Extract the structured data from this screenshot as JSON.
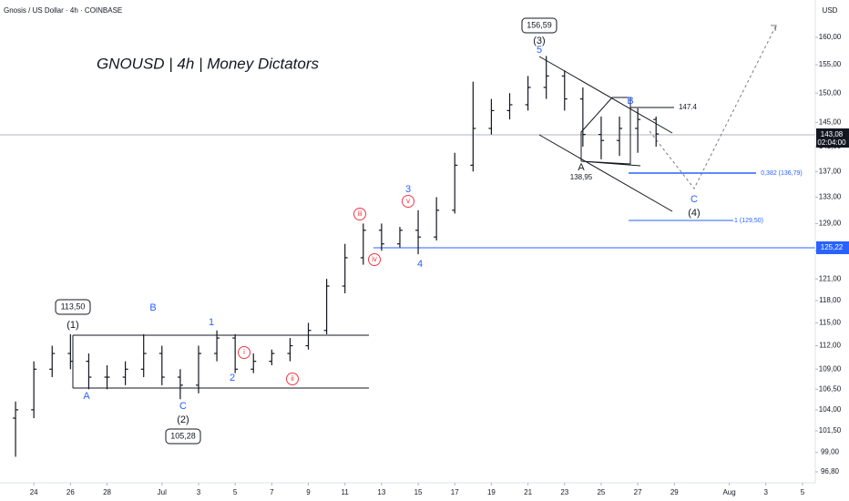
{
  "chart_data": {
    "type": "ohlc",
    "header": "Gnosis / US Dollar · 4h · COINBASE",
    "title": "GNOUSD | 4h | Money Dictators",
    "currency": "USD",
    "color": "#131722",
    "log_scale": true,
    "x": [
      -1,
      0,
      1,
      2,
      3,
      4,
      5,
      6,
      7,
      8,
      9,
      10,
      11,
      12,
      13,
      14,
      15,
      16,
      17,
      18,
      19,
      20,
      21,
      22,
      23,
      24,
      25,
      26,
      27,
      28,
      29,
      30,
      31,
      32,
      33,
      34
    ],
    "open": [
      103,
      104,
      109,
      111,
      110,
      108,
      108,
      109,
      111,
      108,
      107,
      111,
      113,
      109,
      110,
      111,
      112,
      114,
      120,
      124,
      128,
      126,
      128,
      127,
      131,
      138,
      144,
      147,
      148,
      151,
      153,
      149,
      143,
      142,
      144,
      145.5
    ],
    "high": [
      105,
      110,
      112,
      113.5,
      111,
      109.5,
      110,
      113.5,
      112,
      109,
      112,
      114,
      113.5,
      111,
      111.5,
      113,
      115,
      121,
      126,
      129,
      129,
      128.5,
      131,
      133,
      140,
      152,
      149,
      150,
      153,
      156.59,
      154,
      151,
      146,
      146,
      147.4,
      146
    ],
    "low": [
      98.5,
      103,
      108,
      109,
      106.5,
      106.5,
      107,
      108,
      107,
      105.28,
      106,
      110,
      108.5,
      108.5,
      109.5,
      110,
      111.5,
      113.5,
      119,
      123,
      125,
      125.5,
      124.5,
      126.5,
      130.5,
      137,
      143,
      145.5,
      147,
      149,
      147,
      141,
      138.95,
      139.5,
      140,
      141
    ],
    "close": [
      104,
      109,
      111,
      110,
      108,
      108,
      109,
      111,
      108,
      107,
      111,
      113,
      109,
      110,
      111,
      112,
      114,
      120,
      124,
      128,
      126,
      128,
      127,
      131,
      138,
      144,
      147,
      148,
      151,
      153,
      149,
      143,
      142,
      144,
      145.5,
      143.08
    ],
    "xlim": [
      -1.85,
      42.7
    ],
    "xticks": [
      {
        "value": 0,
        "label": "24"
      },
      {
        "value": 2,
        "label": "26"
      },
      {
        "value": 4,
        "label": "28"
      },
      {
        "value": 7,
        "label": "Jul"
      },
      {
        "value": 9,
        "label": "3"
      },
      {
        "value": 11,
        "label": "5"
      },
      {
        "value": 13,
        "label": "7"
      },
      {
        "value": 15,
        "label": "9"
      },
      {
        "value": 17,
        "label": "11"
      },
      {
        "value": 19,
        "label": "13"
      },
      {
        "value": 21,
        "label": "15"
      },
      {
        "value": 23,
        "label": "17"
      },
      {
        "value": 25,
        "label": "19"
      },
      {
        "value": 27,
        "label": "21"
      },
      {
        "value": 29,
        "label": "23"
      },
      {
        "value": 31,
        "label": "25"
      },
      {
        "value": 33,
        "label": "27"
      },
      {
        "value": 35,
        "label": "29"
      },
      {
        "value": 38,
        "label": "Aug"
      },
      {
        "value": 40,
        "label": "3"
      },
      {
        "value": 42,
        "label": "5"
      }
    ],
    "ylim": [
      95.58,
      167.06
    ],
    "yticks": [
      {
        "value": 96.8,
        "label": "96,80"
      },
      {
        "value": 99,
        "label": "99,00"
      },
      {
        "value": 101.5,
        "label": "101,50"
      },
      {
        "value": 104,
        "label": "104,00"
      },
      {
        "value": 106.5,
        "label": "106,50"
      },
      {
        "value": 109,
        "label": "109,00"
      },
      {
        "value": 112,
        "label": "112,00"
      },
      {
        "value": 115,
        "label": "115,00"
      },
      {
        "value": 118,
        "label": "118,00"
      },
      {
        "value": 121,
        "label": "121,00"
      },
      {
        "value": 125,
        "label": "125,00"
      },
      {
        "value": 129,
        "label": "129,00"
      },
      {
        "value": 133,
        "label": "133,00"
      },
      {
        "value": 137,
        "label": "137,00"
      },
      {
        "value": 141,
        "label": "141,00"
      },
      {
        "value": 145,
        "label": "145,00"
      },
      {
        "value": 150,
        "label": "150,00"
      },
      {
        "value": 155,
        "label": "155,00"
      },
      {
        "value": 160,
        "label": "160,00"
      }
    ],
    "annotations": [
      "(1)",
      "113,50",
      "(2)",
      "105,28",
      "(3)",
      "156,59",
      "(4)",
      "A",
      "B",
      "C",
      "1",
      "2",
      "i",
      "ii",
      "iii",
      "iv",
      "v",
      "3",
      "4",
      "5",
      "A",
      "138,95",
      "B",
      "147.4",
      "C",
      "0,382 (136,79)",
      "1 (129,50)",
      "125,22",
      "143,08",
      "02:04:00"
    ]
  }
}
